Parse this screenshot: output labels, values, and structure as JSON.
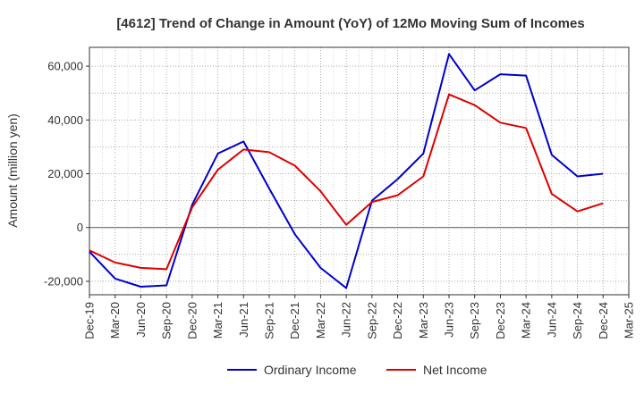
{
  "chart_data": {
    "type": "line",
    "title": "[4612]  Trend of Change in Amount (YoY) of 12Mo Moving Sum of Incomes",
    "ylabel": "Amount (million yen)",
    "xlabel": "",
    "categories": [
      "Dec-19",
      "Mar-20",
      "Jun-20",
      "Sep-20",
      "Dec-20",
      "Mar-21",
      "Jun-21",
      "Sep-21",
      "Dec-21",
      "Mar-22",
      "Jun-22",
      "Sep-22",
      "Dec-22",
      "Mar-23",
      "Jun-23",
      "Sep-23",
      "Dec-23",
      "Mar-24",
      "Jun-24",
      "Sep-24",
      "Dec-24",
      "Mar-25"
    ],
    "ylim": [
      -25000,
      67000
    ],
    "yticks": [
      -20000,
      0,
      20000,
      40000,
      60000
    ],
    "ytick_labels": [
      "-20,000",
      "0",
      "20,000",
      "40,000",
      "60,000"
    ],
    "grid": true,
    "legend_position": "bottom",
    "series": [
      {
        "name": "Ordinary Income",
        "color": "#0000cc",
        "values": [
          -9000,
          -19000,
          -22000,
          -21500,
          8500,
          27500,
          32000,
          14500,
          -2500,
          -15000,
          -22500,
          10000,
          18000,
          27500,
          64500,
          51000,
          57000,
          56500,
          27000,
          19000,
          20000,
          null
        ]
      },
      {
        "name": "Net Income",
        "color": "#dd0000",
        "values": [
          -8500,
          -13000,
          -15000,
          -15500,
          7500,
          21500,
          29000,
          28000,
          23000,
          13500,
          1000,
          9500,
          12000,
          19000,
          49500,
          45500,
          39000,
          37000,
          12500,
          6000,
          9000,
          null
        ]
      }
    ]
  }
}
